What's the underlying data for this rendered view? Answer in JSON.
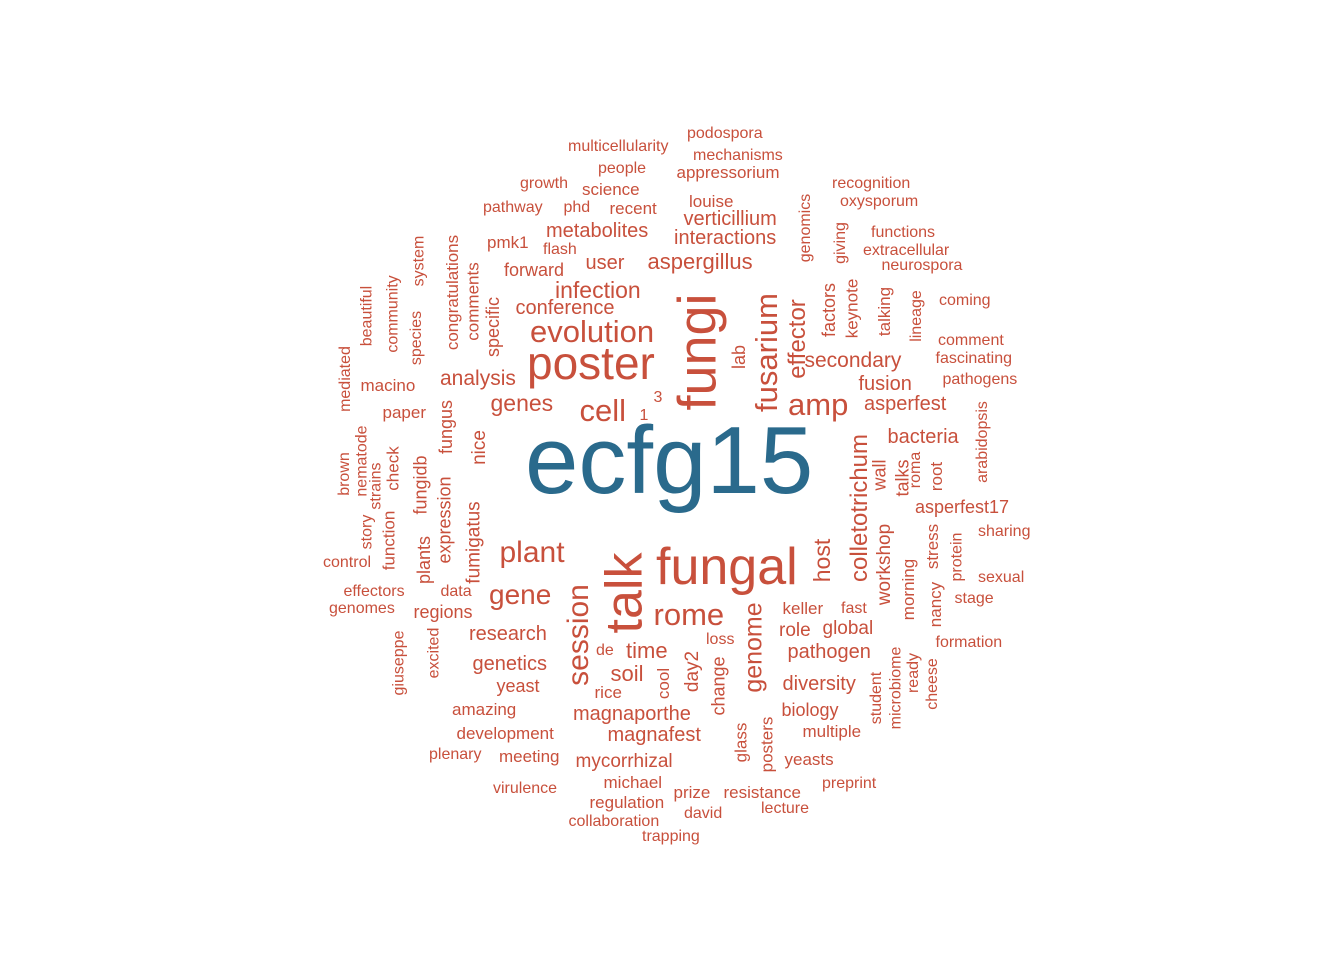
{
  "chart_data": {
    "type": "wordcloud",
    "colors": {
      "primary": "#2a6a8c",
      "secondary": "#c8503c"
    },
    "words": [
      {
        "text": "ecfg15",
        "weight": 100,
        "highlight": true
      },
      {
        "text": "fungi",
        "weight": 52
      },
      {
        "text": "talk",
        "weight": 50
      },
      {
        "text": "fungal",
        "weight": 48
      },
      {
        "text": "poster",
        "weight": 45
      },
      {
        "text": "evolution",
        "weight": 32
      },
      {
        "text": "fusarium",
        "weight": 32
      },
      {
        "text": "cell",
        "weight": 31
      },
      {
        "text": "amp",
        "weight": 30
      },
      {
        "text": "session",
        "weight": 30
      },
      {
        "text": "plant",
        "weight": 30
      },
      {
        "text": "rome",
        "weight": 30
      },
      {
        "text": "gene",
        "weight": 28
      },
      {
        "text": "genome",
        "weight": 26
      },
      {
        "text": "colletotrichum",
        "weight": 25
      },
      {
        "text": "effector",
        "weight": 25
      },
      {
        "text": "genes",
        "weight": 23
      },
      {
        "text": "infection",
        "weight": 23
      },
      {
        "text": "host",
        "weight": 23
      },
      {
        "text": "time",
        "weight": 23
      },
      {
        "text": "aspergillus",
        "weight": 22
      },
      {
        "text": "soil",
        "weight": 22
      },
      {
        "text": "analysis",
        "weight": 21
      },
      {
        "text": "secondary",
        "weight": 21
      },
      {
        "text": "interactions",
        "weight": 20
      },
      {
        "text": "verticillium",
        "weight": 20
      },
      {
        "text": "metabolites",
        "weight": 20
      },
      {
        "text": "conference",
        "weight": 20
      },
      {
        "text": "user",
        "weight": 20
      },
      {
        "text": "research",
        "weight": 20
      },
      {
        "text": "genetics",
        "weight": 20
      },
      {
        "text": "bacteria",
        "weight": 20
      },
      {
        "text": "asperfest",
        "weight": 20
      },
      {
        "text": "fusion",
        "weight": 20
      },
      {
        "text": "diversity",
        "weight": 20
      },
      {
        "text": "pathogen",
        "weight": 20
      },
      {
        "text": "magnaporthe",
        "weight": 20
      },
      {
        "text": "magnafest",
        "weight": 20
      },
      {
        "text": "mycorrhizal",
        "weight": 19
      },
      {
        "text": "workshop",
        "weight": 19
      },
      {
        "text": "fumigatus",
        "weight": 19
      },
      {
        "text": "nice",
        "weight": 19
      },
      {
        "text": "day2",
        "weight": 19
      },
      {
        "text": "role",
        "weight": 19
      },
      {
        "text": "global",
        "weight": 19
      },
      {
        "text": "asperfest17",
        "weight": 18
      },
      {
        "text": "talks",
        "weight": 18
      },
      {
        "text": "forward",
        "weight": 18
      },
      {
        "text": "specific",
        "weight": 18
      },
      {
        "text": "expression",
        "weight": 18
      },
      {
        "text": "fungus",
        "weight": 18
      },
      {
        "text": "fungidb",
        "weight": 18
      },
      {
        "text": "plants",
        "weight": 18
      },
      {
        "text": "factors",
        "weight": 18
      },
      {
        "text": "regions",
        "weight": 18
      },
      {
        "text": "change",
        "weight": 18
      },
      {
        "text": "yeast",
        "weight": 18
      },
      {
        "text": "biology",
        "weight": 18
      },
      {
        "text": "lab",
        "weight": 18
      },
      {
        "text": "wall",
        "weight": 18
      },
      {
        "text": "root",
        "weight": 18
      },
      {
        "text": "keller",
        "weight": 17
      },
      {
        "text": "multiple",
        "weight": 17
      },
      {
        "text": "posters",
        "weight": 17
      },
      {
        "text": "glass",
        "weight": 17
      },
      {
        "text": "yeasts",
        "weight": 17
      },
      {
        "text": "resistance",
        "weight": 17
      },
      {
        "text": "prize",
        "weight": 17
      },
      {
        "text": "development",
        "weight": 17
      },
      {
        "text": "meeting",
        "weight": 17
      },
      {
        "text": "amazing",
        "weight": 17
      },
      {
        "text": "rice",
        "weight": 17
      },
      {
        "text": "paper",
        "weight": 17
      },
      {
        "text": "macino",
        "weight": 17
      },
      {
        "text": "check",
        "weight": 17
      },
      {
        "text": "function",
        "weight": 17
      },
      {
        "text": "comments",
        "weight": 17
      },
      {
        "text": "congratulations",
        "weight": 17
      },
      {
        "text": "pmk1",
        "weight": 17
      },
      {
        "text": "keynote",
        "weight": 17
      },
      {
        "text": "talking",
        "weight": 17
      },
      {
        "text": "morning",
        "weight": 17
      },
      {
        "text": "stress",
        "weight": 17
      },
      {
        "text": "nancy",
        "weight": 17
      },
      {
        "text": "cool",
        "weight": 17
      },
      {
        "text": "michael",
        "weight": 17
      },
      {
        "text": "regulation",
        "weight": 17
      },
      {
        "text": "louise",
        "weight": 17
      },
      {
        "text": "recent",
        "weight": 17
      },
      {
        "text": "science",
        "weight": 17
      },
      {
        "text": "appressorium",
        "weight": 17
      },
      {
        "text": "people",
        "weight": 16
      },
      {
        "text": "phd",
        "weight": 16
      },
      {
        "text": "pathway",
        "weight": 16
      },
      {
        "text": "growth",
        "weight": 16
      },
      {
        "text": "flash",
        "weight": 16
      },
      {
        "text": "genomics",
        "weight": 16
      },
      {
        "text": "giving",
        "weight": 16
      },
      {
        "text": "species",
        "weight": 16
      },
      {
        "text": "system",
        "weight": 16
      },
      {
        "text": "community",
        "weight": 16
      },
      {
        "text": "beautiful",
        "weight": 16
      },
      {
        "text": "mediated",
        "weight": 16
      },
      {
        "text": "nematode",
        "weight": 16
      },
      {
        "text": "strains",
        "weight": 16
      },
      {
        "text": "brown",
        "weight": 16
      },
      {
        "text": "story",
        "weight": 16
      },
      {
        "text": "control",
        "weight": 16
      },
      {
        "text": "effectors",
        "weight": 16
      },
      {
        "text": "data",
        "weight": 16
      },
      {
        "text": "genomes",
        "weight": 16
      },
      {
        "text": "giuseppe",
        "weight": 16
      },
      {
        "text": "excited",
        "weight": 16
      },
      {
        "text": "de",
        "weight": 16
      },
      {
        "text": "loss",
        "weight": 16
      },
      {
        "text": "fast",
        "weight": 16
      },
      {
        "text": "microbiome",
        "weight": 16
      },
      {
        "text": "student",
        "weight": 16
      },
      {
        "text": "ready",
        "weight": 16
      },
      {
        "text": "cheese",
        "weight": 16
      },
      {
        "text": "formation",
        "weight": 16
      },
      {
        "text": "stage",
        "weight": 16
      },
      {
        "text": "sexual",
        "weight": 16
      },
      {
        "text": "protein",
        "weight": 16
      },
      {
        "text": "sharing",
        "weight": 16
      },
      {
        "text": "arabidopsis",
        "weight": 16
      },
      {
        "text": "roma",
        "weight": 16
      },
      {
        "text": "pathogens",
        "weight": 16
      },
      {
        "text": "fascinating",
        "weight": 16
      },
      {
        "text": "comment",
        "weight": 16
      },
      {
        "text": "lineage",
        "weight": 16
      },
      {
        "text": "coming",
        "weight": 16
      },
      {
        "text": "neurospora",
        "weight": 16
      },
      {
        "text": "extracellular",
        "weight": 16
      },
      {
        "text": "functions",
        "weight": 16
      },
      {
        "text": "oxysporum",
        "weight": 16
      },
      {
        "text": "recognition",
        "weight": 16
      },
      {
        "text": "mechanisms",
        "weight": 16
      },
      {
        "text": "podospora",
        "weight": 16
      },
      {
        "text": "multicellularity",
        "weight": 16
      },
      {
        "text": "plenary",
        "weight": 16
      },
      {
        "text": "virulence",
        "weight": 16
      },
      {
        "text": "collaboration",
        "weight": 16
      },
      {
        "text": "trapping",
        "weight": 16
      },
      {
        "text": "david",
        "weight": 16
      },
      {
        "text": "lecture",
        "weight": 16
      },
      {
        "text": "preprint",
        "weight": 16
      },
      {
        "text": "1",
        "weight": 16
      },
      {
        "text": "3",
        "weight": 16
      }
    ]
  }
}
